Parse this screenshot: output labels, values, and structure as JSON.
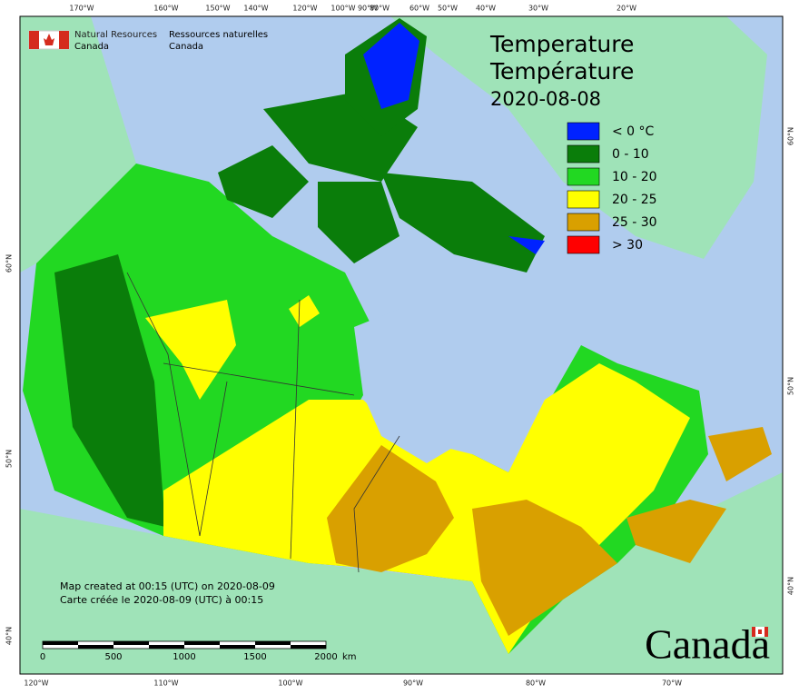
{
  "header": {
    "agency_en_1": "Natural Resources",
    "agency_en_2": "Canada",
    "agency_fr_1": "Ressources naturelles",
    "agency_fr_2": "Canada"
  },
  "title": {
    "line1": "Temperature",
    "line2": "Température",
    "date": "2020-08-08"
  },
  "legend": [
    {
      "label": "< 0 °C",
      "color": "#0022ff"
    },
    {
      "label": "0 - 10",
      "color": "#0a7d0a"
    },
    {
      "label": "10 - 20",
      "color": "#22d822"
    },
    {
      "label": "20 - 25",
      "color": "#ffff00"
    },
    {
      "label": "25 - 30",
      "color": "#d9a000"
    },
    {
      "label": "> 30",
      "color": "#ff0000"
    }
  ],
  "top_longitudes": [
    "170°W",
    "160°W",
    "150°W",
    "140°W",
    "120°W",
    "100°W",
    "90°W",
    "80°W",
    "60°W",
    "50°W",
    "40°W",
    "30°W",
    "20°W"
  ],
  "bottom_longitudes": [
    "120°W",
    "110°W",
    "100°W",
    "90°W",
    "80°W",
    "70°W"
  ],
  "left_latitudes": [
    "60°N",
    "50°N",
    "40°N"
  ],
  "right_latitudes": [
    "60°N",
    "50°N",
    "40°N"
  ],
  "footer": {
    "created_en": "Map created at 00:15 (UTC) on 2020-08-09",
    "created_fr": "Carte créée le 2020-08-09 (UTC) à 00:15"
  },
  "scale_bar": {
    "ticks": [
      "0",
      "500",
      "1000",
      "1500",
      "2000"
    ],
    "unit": "km"
  },
  "wordmark": "Canada"
}
